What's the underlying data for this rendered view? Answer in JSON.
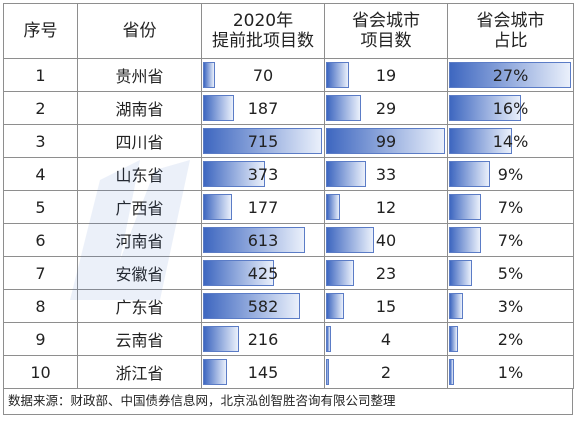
{
  "header": {
    "col_index": "序号",
    "col_province": "省份",
    "col_total": "2020年\n提前批项目数",
    "col_capital": "省会城市\n项目数",
    "col_share": "省会城市\n占比"
  },
  "rows": [
    {
      "index": "1",
      "province": "贵州省",
      "total": 70,
      "capital": 19,
      "share": 27,
      "share_label": "27%"
    },
    {
      "index": "2",
      "province": "湖南省",
      "total": 187,
      "capital": 29,
      "share": 16,
      "share_label": "16%"
    },
    {
      "index": "3",
      "province": "四川省",
      "total": 715,
      "capital": 99,
      "share": 14,
      "share_label": "14%"
    },
    {
      "index": "4",
      "province": "山东省",
      "total": 373,
      "capital": 33,
      "share": 9,
      "share_label": "9%"
    },
    {
      "index": "5",
      "province": "广西省",
      "total": 177,
      "capital": 12,
      "share": 7,
      "share_label": "7%"
    },
    {
      "index": "6",
      "province": "河南省",
      "total": 613,
      "capital": 40,
      "share": 7,
      "share_label": "7%"
    },
    {
      "index": "7",
      "province": "安徽省",
      "total": 425,
      "capital": 23,
      "share": 5,
      "share_label": "5%"
    },
    {
      "index": "8",
      "province": "广东省",
      "total": 582,
      "capital": 15,
      "share": 3,
      "share_label": "3%"
    },
    {
      "index": "9",
      "province": "云南省",
      "total": 216,
      "capital": 4,
      "share": 2,
      "share_label": "2%"
    },
    {
      "index": "10",
      "province": "浙江省",
      "total": 145,
      "capital": 2,
      "share": 1,
      "share_label": "1%"
    }
  ],
  "source": "数据来源：财政部、中国债券信息网，北京泓创智胜咨询有限公司整理",
  "watermark": "泓创智胜",
  "colors": {
    "bar": "#3e67c0",
    "border": "#8e8e8e"
  }
}
